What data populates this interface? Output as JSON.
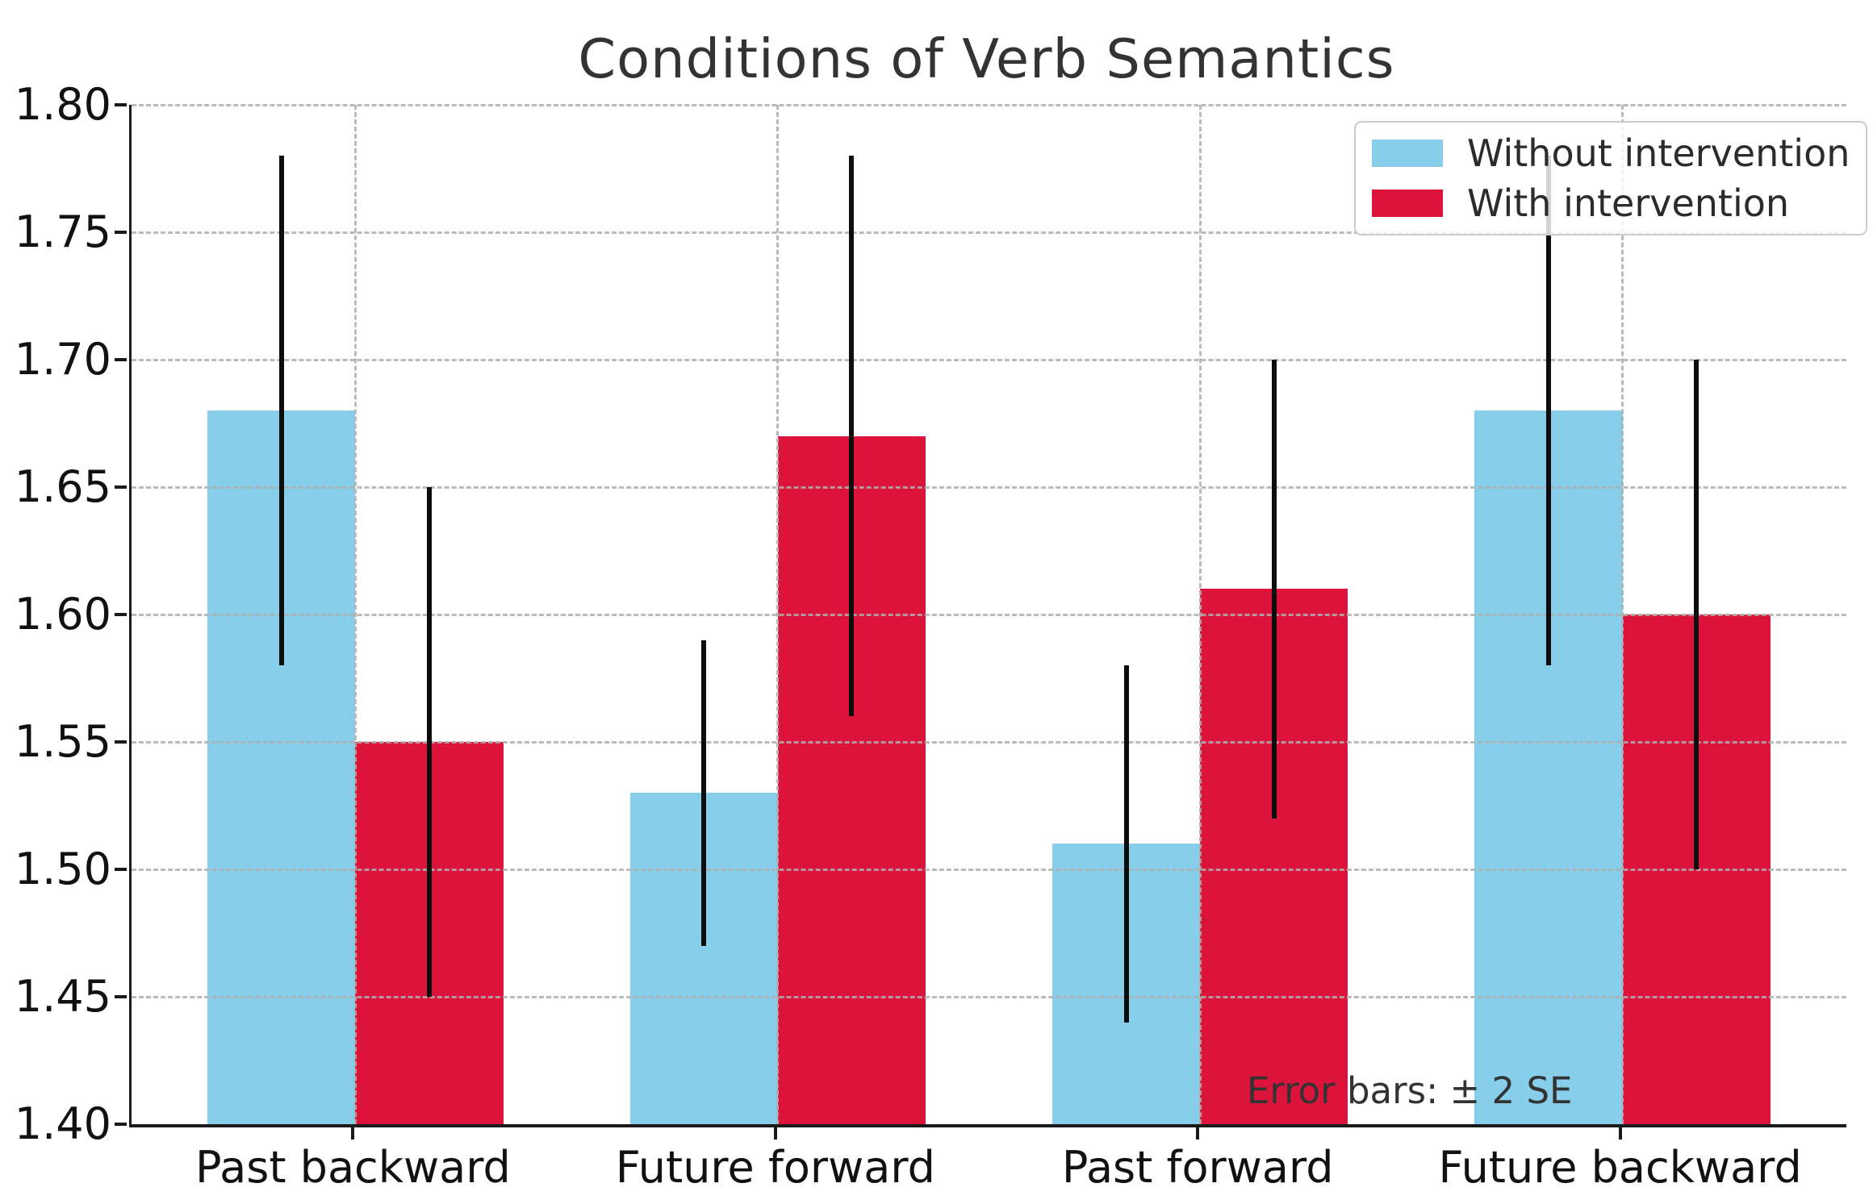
{
  "chart_data": {
    "type": "bar",
    "title": "Conditions of Verb Semantics",
    "categories": [
      "Past backward",
      "Future forward",
      "Past forward",
      "Future backward"
    ],
    "series": [
      {
        "name": "Without intervention",
        "color": "#87CEEB",
        "values": [
          1.68,
          1.53,
          1.51,
          1.68
        ],
        "errors_2se": [
          0.1,
          0.06,
          0.07,
          0.1
        ]
      },
      {
        "name": "With intervention",
        "color": "#DC143C",
        "values": [
          1.55,
          1.67,
          1.61,
          1.6
        ],
        "errors_2se": [
          0.1,
          0.11,
          0.09,
          0.1
        ]
      }
    ],
    "annotation": "Error bars: ± 2 SE",
    "xlabel": "",
    "ylabel": "",
    "ylim": [
      1.4,
      1.8
    ],
    "yticks": [
      "1.40",
      "1.45",
      "1.50",
      "1.55",
      "1.60",
      "1.65",
      "1.70",
      "1.75",
      "1.80"
    ],
    "xlim": [
      -0.53,
      3.53
    ],
    "bar_width": 0.35,
    "grid": true,
    "grid_style": "dashed",
    "legend_position": "upper right",
    "error_bar_caps": false
  }
}
